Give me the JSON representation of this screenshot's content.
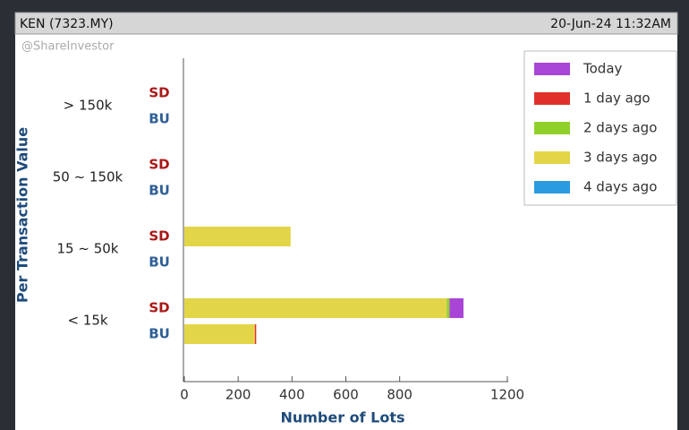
{
  "header": {
    "symbol": "KEN (7323.MY)",
    "timestamp": "20-Jun-24 11:32AM",
    "watermark": "@ShareInvestor"
  },
  "chart_data": {
    "type": "bar",
    "orientation": "horizontal",
    "stacked": true,
    "groups": [
      "> 150k",
      "50 ~ 150k",
      "15 ~ 50k",
      "< 15k"
    ],
    "categories": [
      "SD",
      "BU",
      "SD",
      "BU",
      "SD",
      "BU",
      "SD",
      "BU"
    ],
    "series": [
      {
        "name": "Today",
        "color": "#a845d6",
        "values": [
          0,
          0,
          0,
          0,
          0,
          0,
          52,
          0
        ]
      },
      {
        "name": "1 day ago",
        "color": "#e0302a",
        "values": [
          0,
          0,
          0,
          0,
          0,
          0,
          0,
          5
        ]
      },
      {
        "name": "2 days ago",
        "color": "#8fd12a",
        "values": [
          0,
          0,
          0,
          0,
          0,
          0,
          10,
          0
        ]
      },
      {
        "name": "3 days ago",
        "color": "#e3d548",
        "values": [
          0,
          0,
          0,
          0,
          395,
          0,
          975,
          262
        ]
      },
      {
        "name": "4 days ago",
        "color": "#2a9be0",
        "values": [
          0,
          0,
          0,
          0,
          0,
          0,
          0,
          0
        ]
      }
    ],
    "xlabel": "Number of Lots",
    "ylabel": "Per Transaction Value",
    "xlim": [
      0,
      1200
    ],
    "xticks": [
      0,
      200,
      400,
      600,
      800,
      1200
    ],
    "legend": "upper right"
  }
}
